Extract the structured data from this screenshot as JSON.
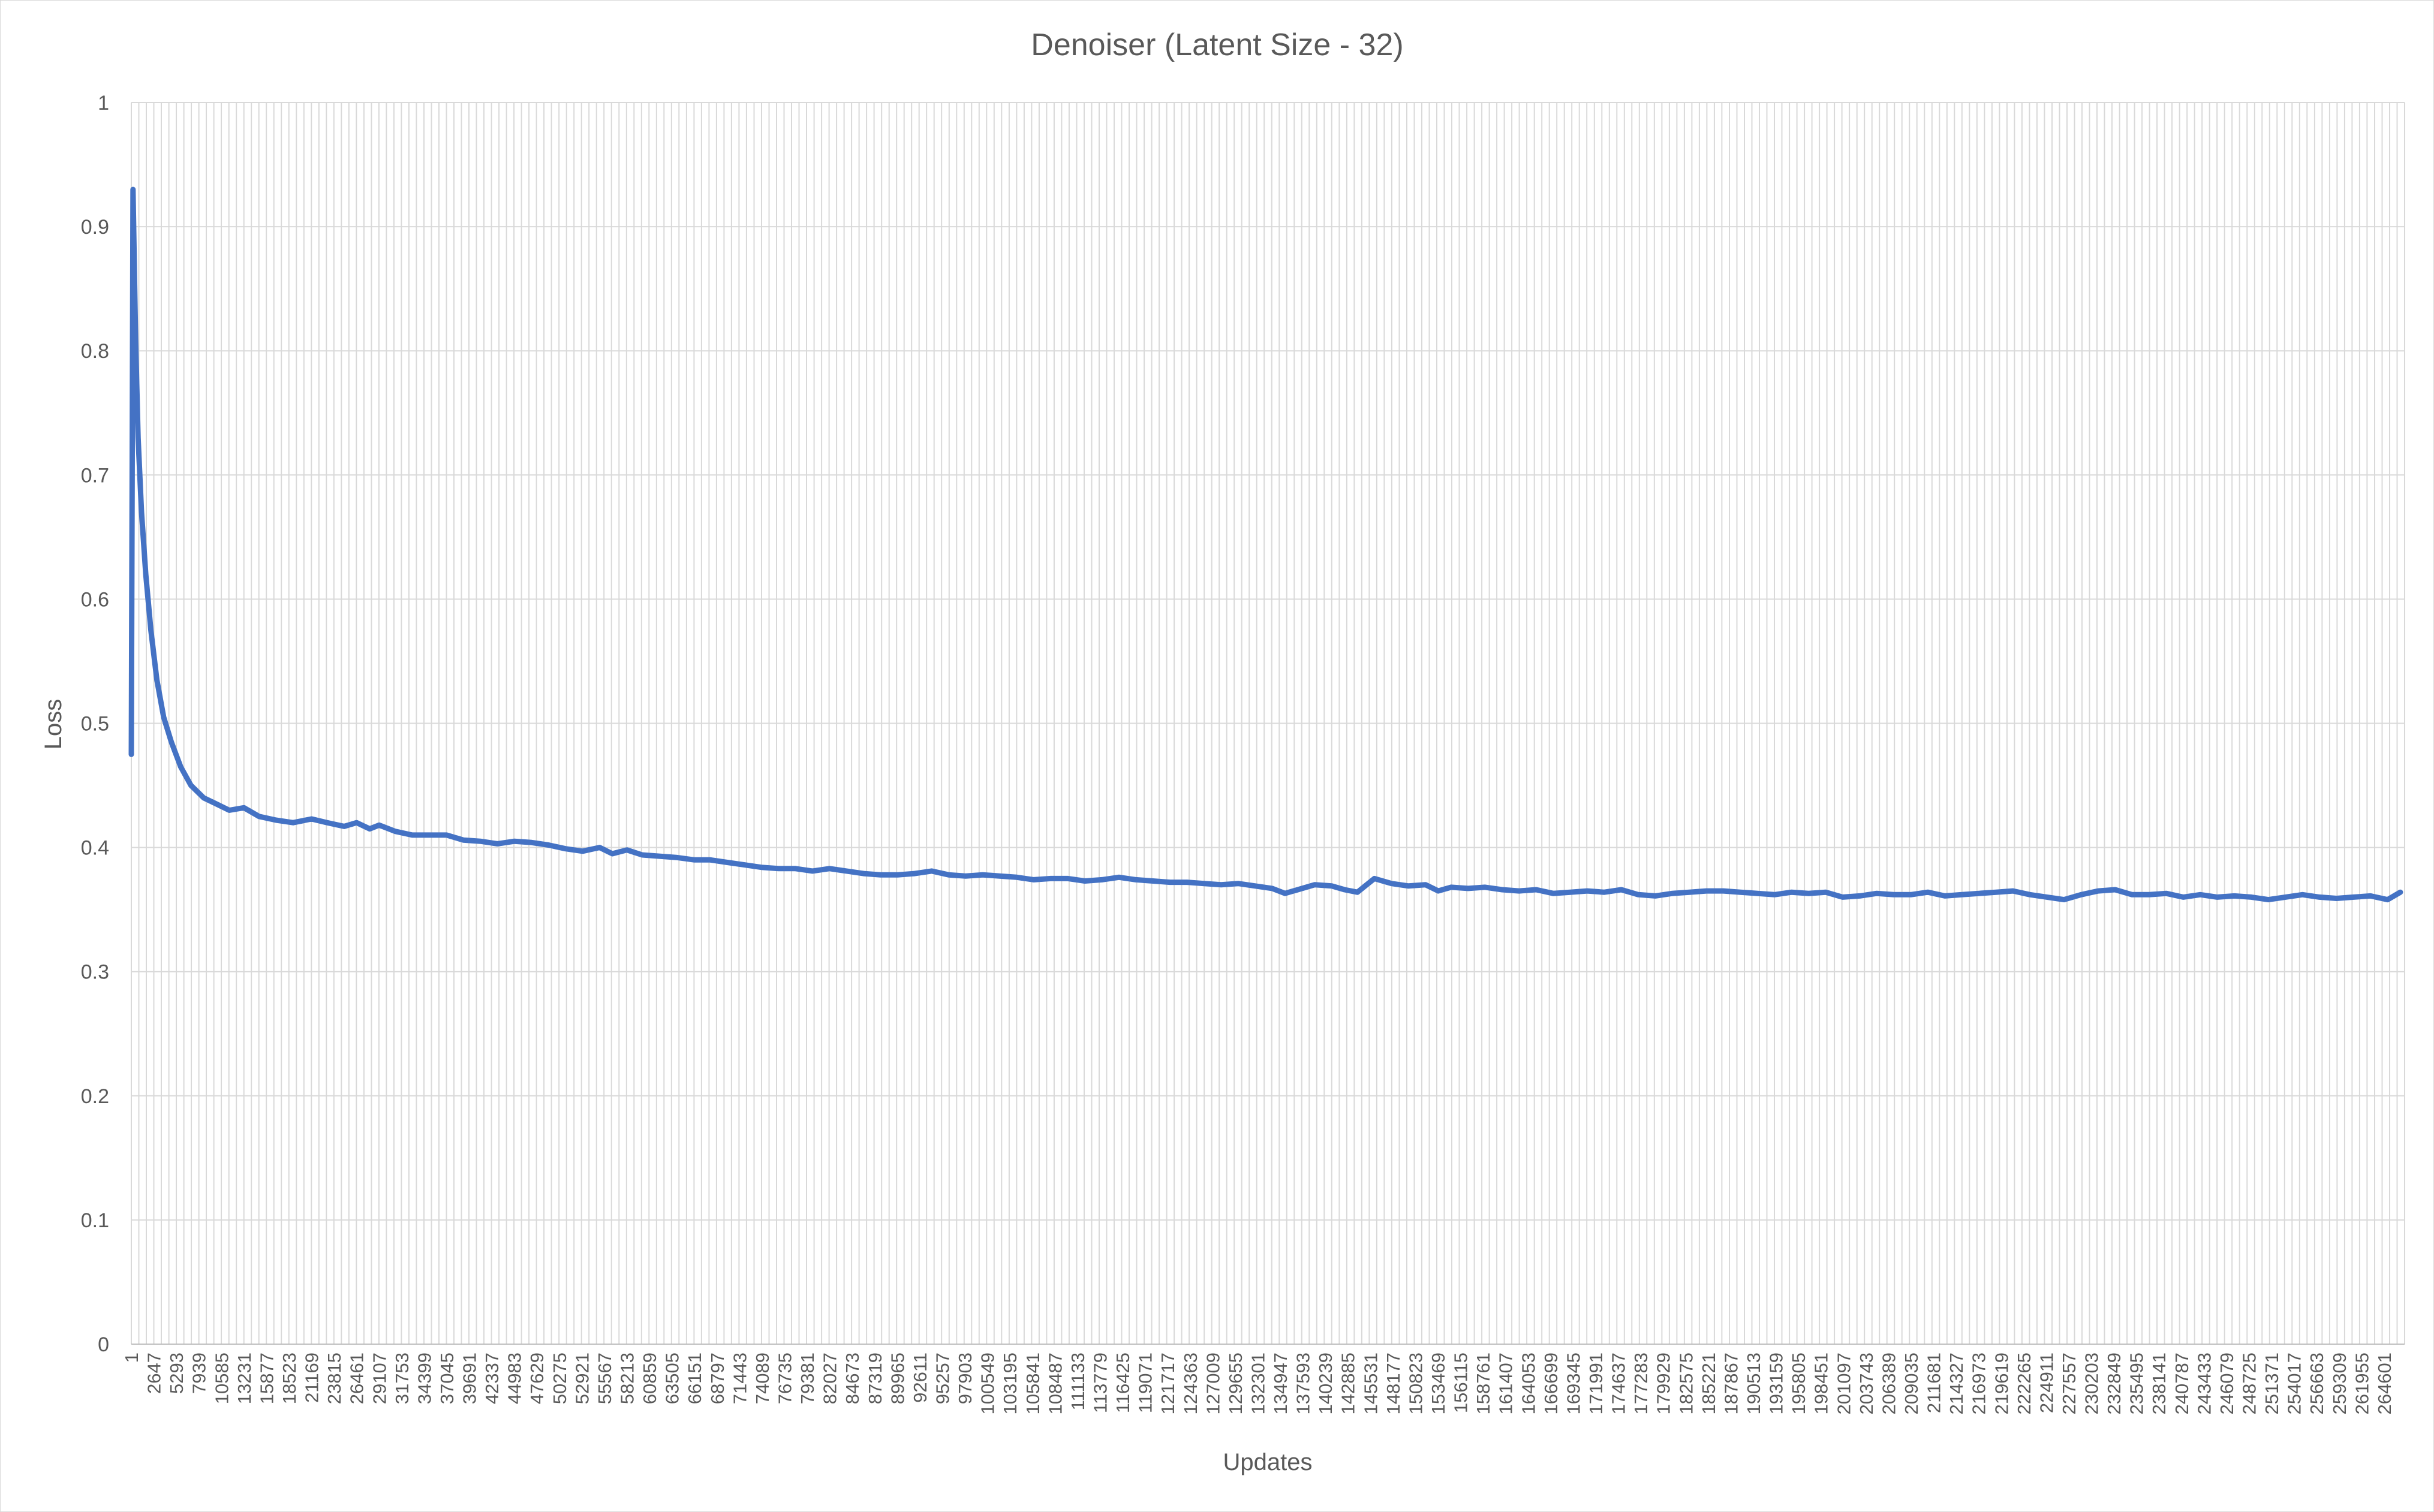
{
  "chart_data": {
    "type": "line",
    "title": "Denoiser (Latent Size - 32)",
    "xlabel": "Updates",
    "ylabel": "Loss",
    "ylim": [
      0,
      1
    ],
    "yticks": [
      "0",
      "0.1",
      "0.2",
      "0.3",
      "0.4",
      "0.5",
      "0.6",
      "0.7",
      "0.8",
      "0.9",
      "1"
    ],
    "xlim": [
      1,
      267000
    ],
    "xticks": [
      1,
      2647,
      5293,
      7939,
      10585,
      13231,
      15877,
      18523,
      21169,
      23815,
      26461,
      29107,
      31753,
      34399,
      37045,
      39691,
      42337,
      44983,
      47629,
      50275,
      52921,
      55567,
      58213,
      60859,
      63505,
      66151,
      68797,
      71443,
      74089,
      76735,
      79381,
      82027,
      84673,
      87319,
      89965,
      92611,
      95257,
      97903,
      100549,
      103195,
      105841,
      108487,
      111133,
      113779,
      116425,
      119071,
      121717,
      124363,
      127009,
      129655,
      132301,
      134947,
      137593,
      140239,
      142885,
      145531,
      148177,
      150823,
      153469,
      156115,
      158761,
      161407,
      164053,
      166699,
      169345,
      171991,
      174637,
      177283,
      179929,
      182575,
      185221,
      187867,
      190513,
      193159,
      195805,
      198451,
      201097,
      203743,
      206389,
      209035,
      211681,
      214327,
      216973,
      219619,
      222265,
      224911,
      227557,
      230203,
      232849,
      235495,
      238141,
      240787,
      243433,
      246079,
      248725,
      251371,
      254017,
      256663,
      259309,
      261955,
      264601
    ],
    "grid": true,
    "legend": "none",
    "series": [
      {
        "color": "#4472c4",
        "x": [
          1,
          200,
          500,
          800,
          1200,
          1700,
          2300,
          3000,
          3800,
          4700,
          5800,
          7000,
          8500,
          10000,
          11500,
          13231,
          15000,
          17000,
          19000,
          21169,
          23000,
          25000,
          26461,
          28000,
          29107,
          31000,
          33000,
          35000,
          37045,
          39000,
          41000,
          43000,
          45000,
          47000,
          49000,
          51000,
          53000,
          55000,
          56500,
          58213,
          60000,
          62000,
          64000,
          66151,
          68000,
          70000,
          72000,
          74000,
          76000,
          78000,
          80000,
          82000,
          84000,
          86000,
          88000,
          90000,
          92000,
          94000,
          96000,
          98000,
          100000,
          102000,
          104000,
          106000,
          108000,
          110000,
          112000,
          114000,
          116000,
          118000,
          120000,
          122000,
          124000,
          126000,
          128000,
          130000,
          132000,
          134000,
          135500,
          137000,
          139000,
          141000,
          142500,
          144000,
          146000,
          148000,
          150000,
          152000,
          153500,
          155000,
          157000,
          159000,
          161000,
          163000,
          165000,
          167000,
          169000,
          171000,
          173000,
          175000,
          177000,
          179000,
          181000,
          183000,
          185000,
          187000,
          189000,
          191000,
          193000,
          195000,
          197000,
          199000,
          201000,
          203000,
          205000,
          207000,
          209000,
          211000,
          213000,
          215000,
          217000,
          219000,
          221000,
          223000,
          225000,
          227000,
          229000,
          231000,
          233000,
          235000,
          237000,
          239000,
          241000,
          243000,
          245000,
          247000,
          249000,
          251000,
          253000,
          255000,
          257000,
          259000,
          261000,
          263000,
          265000,
          266500
        ],
        "values": [
          0.475,
          0.93,
          0.81,
          0.73,
          0.67,
          0.62,
          0.575,
          0.535,
          0.505,
          0.485,
          0.465,
          0.45,
          0.44,
          0.435,
          0.43,
          0.432,
          0.425,
          0.422,
          0.42,
          0.423,
          0.42,
          0.417,
          0.42,
          0.415,
          0.418,
          0.413,
          0.41,
          0.41,
          0.41,
          0.406,
          0.405,
          0.403,
          0.405,
          0.404,
          0.402,
          0.399,
          0.397,
          0.4,
          0.395,
          0.398,
          0.394,
          0.393,
          0.392,
          0.39,
          0.39,
          0.388,
          0.386,
          0.384,
          0.383,
          0.383,
          0.381,
          0.383,
          0.381,
          0.379,
          0.378,
          0.378,
          0.379,
          0.381,
          0.378,
          0.377,
          0.378,
          0.377,
          0.376,
          0.374,
          0.375,
          0.375,
          0.373,
          0.374,
          0.376,
          0.374,
          0.373,
          0.372,
          0.372,
          0.371,
          0.37,
          0.371,
          0.369,
          0.367,
          0.363,
          0.366,
          0.37,
          0.369,
          0.366,
          0.364,
          0.375,
          0.371,
          0.369,
          0.37,
          0.365,
          0.368,
          0.367,
          0.368,
          0.366,
          0.365,
          0.366,
          0.363,
          0.364,
          0.365,
          0.364,
          0.366,
          0.362,
          0.361,
          0.363,
          0.364,
          0.365,
          0.365,
          0.364,
          0.363,
          0.362,
          0.364,
          0.363,
          0.364,
          0.36,
          0.361,
          0.363,
          0.362,
          0.362,
          0.364,
          0.361,
          0.362,
          0.363,
          0.364,
          0.365,
          0.362,
          0.36,
          0.358,
          0.362,
          0.365,
          0.366,
          0.362,
          0.362,
          0.363,
          0.36,
          0.362,
          0.36,
          0.361,
          0.36,
          0.358,
          0.36,
          0.362,
          0.36,
          0.359,
          0.36,
          0.361,
          0.358,
          0.364
        ]
      }
    ]
  }
}
